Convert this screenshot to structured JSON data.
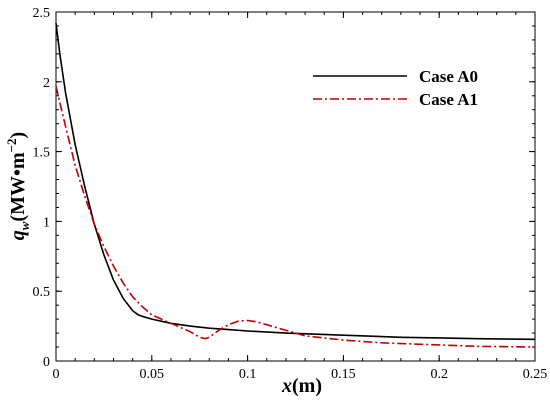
{
  "chart_data": {
    "type": "line",
    "xlabel": {
      "main": "x",
      "unit": "(m)"
    },
    "ylabel": {
      "main": "q",
      "sub": "w",
      "unit": "(MW•m",
      "exp": "−2",
      "close": ")"
    },
    "xlim": [
      0,
      0.25
    ],
    "ylim": [
      0,
      2.5
    ],
    "x_ticks": [
      0,
      0.05,
      0.1,
      0.15,
      0.2,
      0.25
    ],
    "x_tick_labels": [
      "0",
      "0.05",
      "0.1",
      "0.15",
      "0.2",
      "0.25"
    ],
    "y_ticks": [
      0,
      0.5,
      1,
      1.5,
      2,
      2.5
    ],
    "y_tick_labels": [
      "0",
      "0.5",
      "1",
      "1.5",
      "2",
      "2.5"
    ],
    "grid": false,
    "legend_position": "top-right",
    "series": [
      {
        "name": "Case A0",
        "color": "#000000",
        "style": "solid",
        "x": [
          0,
          0.002,
          0.005,
          0.01,
          0.015,
          0.02,
          0.025,
          0.03,
          0.035,
          0.04,
          0.043,
          0.045,
          0.05,
          0.06,
          0.07,
          0.08,
          0.09,
          0.1,
          0.12,
          0.15,
          0.18,
          0.2,
          0.22,
          0.25
        ],
        "y": [
          2.42,
          2.2,
          1.92,
          1.55,
          1.25,
          0.98,
          0.76,
          0.58,
          0.45,
          0.36,
          0.33,
          0.32,
          0.3,
          0.27,
          0.25,
          0.235,
          0.225,
          0.215,
          0.2,
          0.185,
          0.17,
          0.165,
          0.16,
          0.155
        ]
      },
      {
        "name": "Case A1",
        "color": "#c00000",
        "style": "dashdot",
        "x": [
          0,
          0.002,
          0.005,
          0.01,
          0.015,
          0.02,
          0.025,
          0.03,
          0.035,
          0.04,
          0.045,
          0.05,
          0.06,
          0.07,
          0.075,
          0.078,
          0.08,
          0.085,
          0.09,
          0.095,
          0.1,
          0.105,
          0.11,
          0.12,
          0.13,
          0.15,
          0.17,
          0.2,
          0.22,
          0.25
        ],
        "y": [
          1.97,
          1.85,
          1.68,
          1.4,
          1.18,
          0.98,
          0.82,
          0.68,
          0.56,
          0.46,
          0.39,
          0.33,
          0.27,
          0.21,
          0.17,
          0.16,
          0.17,
          0.22,
          0.26,
          0.285,
          0.29,
          0.28,
          0.26,
          0.22,
          0.18,
          0.15,
          0.13,
          0.115,
          0.105,
          0.1
        ]
      }
    ]
  }
}
